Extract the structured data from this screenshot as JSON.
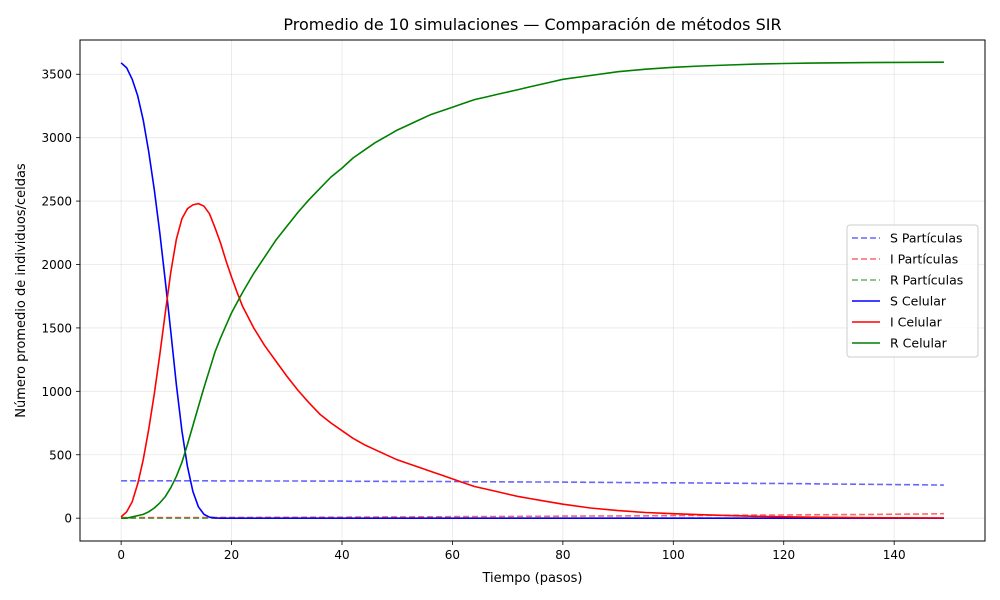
{
  "chart_data": {
    "type": "line",
    "title": "Promedio de 10 simulaciones — Comparación de métodos SIR",
    "xlabel": "Tiempo (pasos)",
    "ylabel": "Número promedio de individuos/celdas",
    "xlim": [
      -7.45,
      156.45
    ],
    "ylim": [
      -180,
      3770
    ],
    "xticks": [
      0,
      20,
      40,
      60,
      80,
      100,
      120,
      140
    ],
    "yticks": [
      0,
      500,
      1000,
      1500,
      2000,
      2500,
      3000,
      3500
    ],
    "grid": true,
    "legend_position": "center-right",
    "x": [
      0,
      1,
      2,
      3,
      4,
      5,
      6,
      7,
      8,
      9,
      10,
      11,
      12,
      13,
      14,
      15,
      16,
      17,
      18,
      19,
      20,
      21,
      22,
      24,
      26,
      28,
      30,
      32,
      34,
      36,
      38,
      40,
      42,
      44,
      46,
      48,
      50,
      52,
      54,
      56,
      58,
      60,
      62,
      64,
      66,
      68,
      70,
      72,
      74,
      76,
      78,
      80,
      85,
      90,
      95,
      100,
      105,
      110,
      115,
      120,
      125,
      130,
      135,
      140,
      145,
      149
    ],
    "series": [
      {
        "name": "S Partículas",
        "color": "#0000ff",
        "style": "dashed",
        "alpha": 0.6,
        "values": [
          295,
          295,
          295,
          295,
          295,
          295,
          295,
          295,
          295,
          295,
          295,
          295,
          295,
          295,
          295,
          295,
          295,
          294,
          294,
          294,
          294,
          294,
          294,
          294,
          293,
          293,
          293,
          293,
          292,
          292,
          292,
          292,
          291,
          291,
          291,
          290,
          290,
          290,
          289,
          289,
          289,
          288,
          288,
          287,
          287,
          287,
          286,
          286,
          285,
          285,
          285,
          284,
          283,
          281,
          280,
          279,
          277,
          276,
          274,
          273,
          271,
          269,
          267,
          265,
          263,
          261
        ]
      },
      {
        "name": "I Partículas",
        "color": "#ff0000",
        "style": "dashed",
        "alpha": 0.6,
        "values": [
          5,
          5,
          5,
          5,
          5,
          5,
          5,
          5,
          5,
          5,
          5,
          5,
          5,
          5,
          5,
          5,
          5,
          6,
          6,
          6,
          6,
          6,
          6,
          6,
          7,
          7,
          7,
          7,
          8,
          8,
          8,
          8,
          9,
          9,
          9,
          10,
          10,
          10,
          11,
          11,
          11,
          12,
          12,
          13,
          13,
          13,
          14,
          14,
          15,
          15,
          15,
          16,
          17,
          18,
          19,
          20,
          22,
          23,
          24,
          25,
          27,
          28,
          29,
          31,
          33,
          35
        ]
      },
      {
        "name": "R Partículas",
        "color": "#008000",
        "style": "dashed",
        "alpha": 0.6,
        "values": [
          0,
          0,
          0,
          0,
          0,
          0,
          0,
          0,
          0,
          0,
          0,
          0,
          0,
          0,
          0,
          0,
          0,
          0,
          0,
          0,
          0,
          0,
          0,
          0,
          0,
          0,
          0,
          0,
          0,
          0,
          0,
          0,
          0,
          0,
          0,
          0,
          0,
          0,
          0,
          0,
          0,
          0,
          0,
          0,
          0,
          0,
          0,
          0,
          0,
          0,
          0,
          0,
          0,
          0,
          0,
          0,
          0,
          0,
          0,
          0,
          0,
          0,
          0,
          0,
          0,
          0
        ]
      },
      {
        "name": "S Celular",
        "color": "#0000ff",
        "style": "solid",
        "alpha": 1,
        "values": [
          3590,
          3550,
          3460,
          3330,
          3140,
          2890,
          2590,
          2250,
          1870,
          1470,
          1050,
          690,
          410,
          210,
          90,
          30,
          8,
          2,
          0,
          0,
          0,
          0,
          0,
          0,
          0,
          0,
          0,
          0,
          0,
          0,
          0,
          0,
          0,
          0,
          0,
          0,
          0,
          0,
          0,
          0,
          0,
          0,
          0,
          0,
          0,
          0,
          0,
          0,
          0,
          0,
          0,
          0,
          0,
          0,
          0,
          0,
          0,
          0,
          0,
          0,
          0,
          0,
          0,
          0,
          0,
          0
        ]
      },
      {
        "name": "I Celular",
        "color": "#ff0000",
        "style": "solid",
        "alpha": 1,
        "values": [
          10,
          50,
          130,
          270,
          460,
          700,
          980,
          1290,
          1620,
          1940,
          2200,
          2360,
          2440,
          2470,
          2480,
          2460,
          2400,
          2290,
          2170,
          2030,
          1900,
          1780,
          1670,
          1500,
          1360,
          1240,
          1120,
          1010,
          910,
          820,
          750,
          690,
          630,
          580,
          540,
          500,
          460,
          430,
          400,
          370,
          340,
          310,
          280,
          250,
          230,
          210,
          190,
          170,
          155,
          140,
          125,
          110,
          80,
          60,
          45,
          35,
          27,
          20,
          15,
          11,
          8,
          6,
          4,
          3,
          2,
          1
        ]
      },
      {
        "name": "R Celular",
        "color": "#008000",
        "style": "solid",
        "alpha": 1,
        "values": [
          0,
          0,
          10,
          20,
          30,
          50,
          80,
          120,
          170,
          240,
          330,
          440,
          580,
          730,
          880,
          1030,
          1170,
          1310,
          1420,
          1520,
          1620,
          1700,
          1780,
          1930,
          2060,
          2190,
          2300,
          2410,
          2510,
          2600,
          2690,
          2760,
          2840,
          2900,
          2960,
          3010,
          3060,
          3100,
          3140,
          3180,
          3210,
          3240,
          3270,
          3300,
          3320,
          3340,
          3360,
          3380,
          3400,
          3420,
          3440,
          3460,
          3490,
          3520,
          3540,
          3555,
          3565,
          3573,
          3580,
          3585,
          3588,
          3590,
          3592,
          3593,
          3594,
          3595
        ]
      }
    ]
  }
}
